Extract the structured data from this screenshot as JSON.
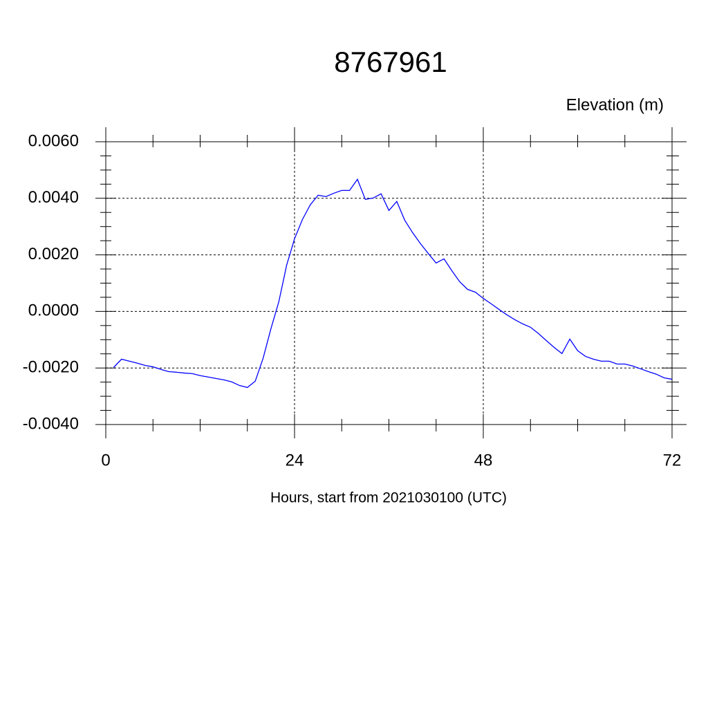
{
  "chart_data": {
    "type": "line",
    "title": "8767961",
    "ylabel": "Elevation (m)",
    "xlabel": "Hours, start from 2021030100 (UTC)",
    "x": [
      1,
      2,
      3,
      4,
      5,
      6,
      7,
      8,
      9,
      10,
      11,
      12,
      13,
      14,
      15,
      16,
      17,
      18,
      19,
      20,
      21,
      22,
      23,
      24,
      25,
      26,
      27,
      28,
      29,
      30,
      31,
      32,
      33,
      34,
      35,
      36,
      37,
      38,
      39,
      40,
      41,
      42,
      43,
      44,
      45,
      46,
      47,
      48,
      49,
      50,
      51,
      52,
      53,
      54,
      55,
      56,
      57,
      58,
      59,
      60,
      61,
      62,
      63,
      64,
      65,
      66,
      67,
      68,
      69,
      70,
      71,
      72
    ],
    "series": [
      {
        "color": "#0000ff",
        "values": [
          -0.00198,
          -0.00169,
          -0.00176,
          -0.00183,
          -0.00191,
          -0.00196,
          -0.00205,
          -0.00213,
          -0.00215,
          -0.00218,
          -0.0022,
          -0.00227,
          -0.00232,
          -0.00237,
          -0.00242,
          -0.00249,
          -0.00262,
          -0.00269,
          -0.00247,
          -0.00166,
          -0.00061,
          0.00034,
          0.00164,
          0.00257,
          0.00325,
          0.00377,
          0.00411,
          0.00406,
          0.00418,
          0.00428,
          0.00428,
          0.00467,
          0.00396,
          0.00401,
          0.00416,
          0.00357,
          0.00389,
          0.00323,
          0.00279,
          0.0024,
          0.00205,
          0.00171,
          0.00186,
          0.00144,
          0.00105,
          0.00078,
          0.00068,
          0.00046,
          0.00027,
          7e-05,
          -0.00012,
          -0.00029,
          -0.00044,
          -0.00056,
          -0.00078,
          -0.00103,
          -0.00127,
          -0.00149,
          -0.00098,
          -0.00139,
          -0.00159,
          -0.00169,
          -0.00176,
          -0.00176,
          -0.00186,
          -0.00186,
          -0.00193,
          -0.00203,
          -0.00213,
          -0.00222,
          -0.00235,
          -0.0024
        ]
      }
    ],
    "xlim": [
      0,
      72
    ],
    "xticks": [
      0,
      24,
      48,
      72
    ],
    "ylim": [
      -0.004,
      0.006
    ],
    "yticks": [
      {
        "value": -0.004,
        "label": "-0.0040"
      },
      {
        "value": -0.002,
        "label": "-0.0020"
      },
      {
        "value": 0,
        "label": "0.0000"
      },
      {
        "value": 0.002,
        "label": "0.0020"
      },
      {
        "value": 0.004,
        "label": "0.0040"
      },
      {
        "value": 0.006,
        "label": "0.0060"
      }
    ],
    "grid": true
  }
}
